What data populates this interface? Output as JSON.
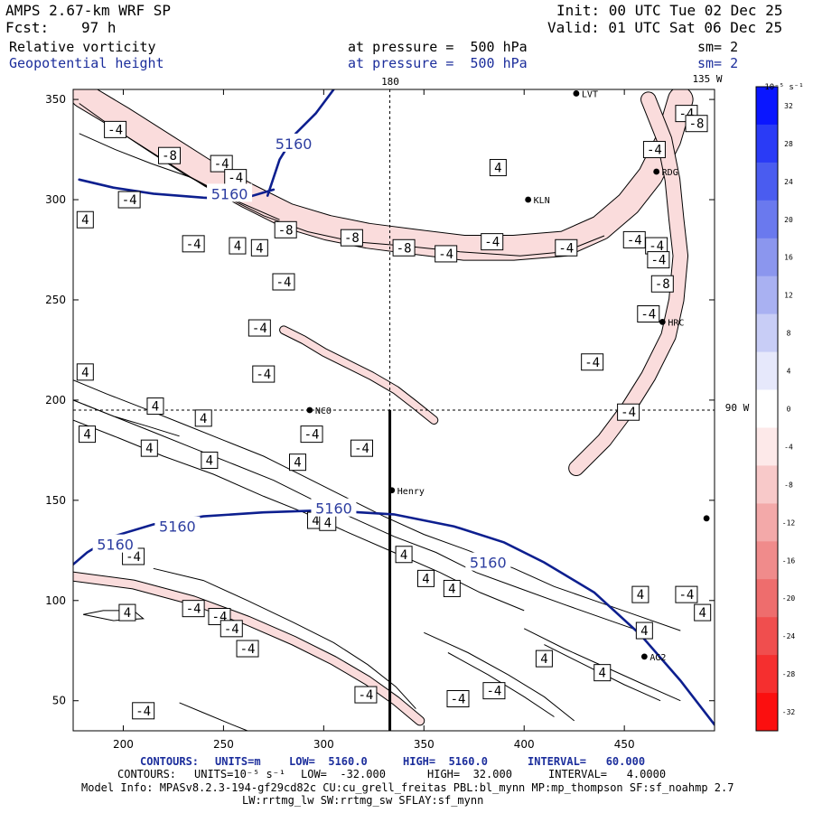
{
  "header": {
    "model": "AMPS 2.67-km WRF SP",
    "init": "Init: 00 UTC Tue 02 Dec 25",
    "fcst_label": "Fcst:",
    "fcst_value": "97 h",
    "valid": "Valid: 01 UTC Sat 06 Dec 25",
    "field1": "Relative vorticity",
    "field1_level": "at pressure =  500 hPa",
    "field1_sm": "sm= 2",
    "field2": "Geopotential height",
    "field2_level": "at pressure =  500 hPa",
    "field2_sm": "sm= 2"
  },
  "map_labels": {
    "meridian_180": "180",
    "meridian_135w": "135 W",
    "parallel_90w": "90 W"
  },
  "stations": [
    {
      "name": "LVT",
      "x": 426,
      "y": 353
    },
    {
      "name": "RDG",
      "x": 466,
      "y": 314
    },
    {
      "name": "KLN",
      "x": 402,
      "y": 300
    },
    {
      "name": "HRC",
      "x": 469,
      "y": 239
    },
    {
      "name": "NCO",
      "x": 293,
      "y": 195
    },
    {
      "name": "Henry",
      "x": 334,
      "y": 155
    },
    {
      "name": "AG2",
      "x": 460,
      "y": 72
    },
    {
      "name": "",
      "x": 491,
      "y": 141
    }
  ],
  "chart_data": {
    "type": "contour",
    "xlim": [
      175,
      495
    ],
    "ylim": [
      35,
      355
    ],
    "xticks": [
      "200",
      "250",
      "300",
      "350",
      "400",
      "450"
    ],
    "xtick_values": [
      200,
      250,
      300,
      350,
      400,
      450
    ],
    "yticks": [
      "50",
      "100",
      "150",
      "200",
      "250",
      "300",
      "350"
    ],
    "ytick_values": [
      50,
      100,
      150,
      200,
      250,
      300,
      350
    ],
    "crosshair": {
      "x": 333,
      "y": 195
    },
    "section_line": {
      "x": 333,
      "y_from": 35,
      "y_to": 195
    },
    "height_contours": [
      {
        "value": "5160",
        "points": [
          [
            178,
            310
          ],
          [
            195,
            306
          ],
          [
            215,
            303
          ],
          [
            240,
            301
          ],
          [
            258,
            300
          ],
          [
            275,
            305
          ]
        ]
      },
      {
        "value": "5160",
        "points": [
          [
            272,
            302
          ],
          [
            278,
            320
          ],
          [
            286,
            333
          ],
          [
            296,
            343
          ],
          [
            305,
            355
          ]
        ]
      },
      {
        "value": "5160",
        "points": [
          [
            175,
            118
          ],
          [
            182,
            124
          ],
          [
            195,
            132
          ],
          [
            215,
            138
          ],
          [
            240,
            142
          ],
          [
            270,
            144
          ],
          [
            300,
            145
          ],
          [
            335,
            143
          ],
          [
            365,
            137
          ],
          [
            390,
            129
          ],
          [
            410,
            119
          ],
          [
            435,
            104
          ],
          [
            458,
            83
          ],
          [
            478,
            60
          ],
          [
            495,
            38
          ]
        ]
      }
    ],
    "height_labels": [
      {
        "text": "5160",
        "x": 285,
        "y": 328
      },
      {
        "text": "5160",
        "x": 253,
        "y": 303
      },
      {
        "text": "5160",
        "x": 196,
        "y": 128
      },
      {
        "text": "5160",
        "x": 227,
        "y": 137
      },
      {
        "text": "5160",
        "x": 305,
        "y": 146
      },
      {
        "text": "5160",
        "x": 382,
        "y": 119
      }
    ],
    "vort_bands": [
      {
        "level": -8,
        "points": [
          [
            190,
            347
          ],
          [
            205,
            338
          ],
          [
            225,
            325
          ],
          [
            245,
            313
          ],
          [
            262,
            303
          ],
          [
            280,
            293
          ],
          [
            300,
            287
          ],
          [
            320,
            283
          ],
          [
            345,
            280
          ],
          [
            370,
            277
          ],
          [
            395,
            277
          ],
          [
            415,
            278
          ],
          [
            425,
            280
          ]
        ],
        "width": 5.5
      },
      {
        "level": -4,
        "points": [
          [
            180,
            352
          ],
          [
            200,
            340
          ],
          [
            222,
            326
          ],
          [
            244,
            312
          ],
          [
            262,
            302
          ],
          [
            282,
            292
          ],
          [
            302,
            286
          ],
          [
            322,
            282
          ],
          [
            345,
            279
          ],
          [
            370,
            276
          ],
          [
            395,
            276
          ],
          [
            420,
            278
          ],
          [
            438,
            286
          ],
          [
            452,
            298
          ],
          [
            463,
            312
          ],
          [
            472,
            330
          ],
          [
            478,
            350
          ]
        ],
        "width": 12
      },
      {
        "level": -4,
        "points": [
          [
            462,
            350
          ],
          [
            470,
            330
          ],
          [
            474,
            310
          ],
          [
            476,
            290
          ],
          [
            478,
            272
          ],
          [
            476,
            250
          ],
          [
            472,
            232
          ],
          [
            462,
            212
          ],
          [
            452,
            196
          ],
          [
            440,
            180
          ],
          [
            426,
            166
          ]
        ],
        "width": 7
      },
      {
        "level": -4,
        "points": [
          [
            175,
            112
          ],
          [
            205,
            108
          ],
          [
            235,
            100
          ],
          [
            262,
            90
          ],
          [
            285,
            80
          ],
          [
            305,
            70
          ],
          [
            322,
            60
          ],
          [
            336,
            50
          ],
          [
            348,
            40
          ]
        ],
        "width": 4
      },
      {
        "level": -4,
        "points": [
          [
            280,
            235
          ],
          [
            290,
            230
          ],
          [
            300,
            224
          ],
          [
            312,
            218
          ],
          [
            324,
            212
          ],
          [
            336,
            205
          ],
          [
            345,
            198
          ],
          [
            355,
            190
          ]
        ],
        "width": 3.5
      }
    ],
    "vort_lines": [
      {
        "points": [
          [
            178,
            348
          ],
          [
            192,
            338
          ],
          [
            210,
            326
          ],
          [
            230,
            313
          ],
          [
            250,
            302
          ],
          [
            270,
            292
          ],
          [
            292,
            284
          ],
          [
            315,
            279
          ],
          [
            340,
            277
          ],
          [
            368,
            274
          ],
          [
            398,
            272
          ],
          [
            420,
            274
          ],
          [
            440,
            282
          ]
        ]
      },
      {
        "points": [
          [
            178,
            333
          ],
          [
            196,
            325
          ],
          [
            214,
            318
          ],
          [
            234,
            311
          ],
          [
            255,
            300
          ],
          [
            278,
            290
          ]
        ]
      },
      {
        "points": [
          [
            175,
            210
          ],
          [
            192,
            203
          ],
          [
            210,
            196
          ],
          [
            230,
            188
          ],
          [
            250,
            180
          ],
          [
            270,
            172
          ],
          [
            290,
            162
          ],
          [
            310,
            152
          ],
          [
            330,
            142
          ],
          [
            350,
            133
          ],
          [
            372,
            125
          ],
          [
            395,
            116
          ],
          [
            415,
            107
          ],
          [
            435,
            100
          ],
          [
            455,
            93
          ],
          [
            478,
            85
          ]
        ]
      },
      {
        "points": [
          [
            175,
            200
          ],
          [
            195,
            192
          ],
          [
            215,
            184
          ],
          [
            235,
            176
          ],
          [
            255,
            168
          ],
          [
            275,
            160
          ],
          [
            295,
            150
          ],
          [
            315,
            141
          ],
          [
            335,
            132
          ],
          [
            356,
            124
          ],
          [
            376,
            114
          ],
          [
            398,
            106
          ],
          [
            420,
            98
          ],
          [
            440,
            91
          ],
          [
            460,
            84
          ]
        ]
      },
      {
        "points": [
          [
            175,
            190
          ],
          [
            198,
            181
          ],
          [
            220,
            172
          ],
          [
            245,
            163
          ],
          [
            270,
            152
          ],
          [
            290,
            144
          ],
          [
            312,
            134
          ],
          [
            335,
            124
          ],
          [
            358,
            114
          ],
          [
            378,
            104
          ],
          [
            400,
            95
          ]
        ]
      },
      {
        "points": [
          [
            215,
            116
          ],
          [
            240,
            110
          ],
          [
            262,
            100
          ],
          [
            285,
            89
          ],
          [
            305,
            79
          ],
          [
            322,
            68
          ],
          [
            336,
            57
          ],
          [
            346,
            46
          ]
        ]
      },
      {
        "points": [
          [
            180,
            93
          ],
          [
            195,
            90
          ],
          [
            210,
            91
          ],
          [
            205,
            95
          ],
          [
            190,
            95
          ],
          [
            180,
            93
          ]
        ]
      },
      {
        "points": [
          [
            228,
            49
          ],
          [
            240,
            44
          ],
          [
            252,
            39
          ],
          [
            262,
            35
          ]
        ]
      },
      {
        "points": [
          [
            350,
            84
          ],
          [
            372,
            74
          ],
          [
            392,
            63
          ],
          [
            410,
            52
          ],
          [
            425,
            40
          ]
        ]
      },
      {
        "points": [
          [
            362,
            74
          ],
          [
            382,
            63
          ],
          [
            400,
            52
          ],
          [
            415,
            42
          ]
        ]
      },
      {
        "points": [
          [
            400,
            86
          ],
          [
            420,
            76
          ],
          [
            440,
            67
          ],
          [
            460,
            58
          ],
          [
            478,
            50
          ]
        ]
      },
      {
        "points": [
          [
            410,
            78
          ],
          [
            430,
            68
          ],
          [
            450,
            58
          ],
          [
            468,
            50
          ]
        ]
      },
      {
        "points": [
          [
            180,
            198
          ],
          [
            195,
            192
          ],
          [
            212,
            187
          ],
          [
            228,
            182
          ]
        ]
      }
    ],
    "vort_labels": [
      {
        "text": "-4",
        "x": 196,
        "y": 335
      },
      {
        "text": "-8",
        "x": 223,
        "y": 322
      },
      {
        "text": "-4",
        "x": 249,
        "y": 318
      },
      {
        "text": "-4",
        "x": 256,
        "y": 311
      },
      {
        "text": "-4",
        "x": 203,
        "y": 300
      },
      {
        "text": "4",
        "x": 181,
        "y": 290
      },
      {
        "text": "-4",
        "x": 235,
        "y": 278
      },
      {
        "text": "4",
        "x": 257,
        "y": 277
      },
      {
        "text": "4",
        "x": 268,
        "y": 276
      },
      {
        "text": "-8",
        "x": 281,
        "y": 285
      },
      {
        "text": "-8",
        "x": 314,
        "y": 281
      },
      {
        "text": "-8",
        "x": 340,
        "y": 276
      },
      {
        "text": "-4",
        "x": 361,
        "y": 273
      },
      {
        "text": "-4",
        "x": 280,
        "y": 259
      },
      {
        "text": "-4",
        "x": 268,
        "y": 236
      },
      {
        "text": "-4",
        "x": 270,
        "y": 213
      },
      {
        "text": "4",
        "x": 181,
        "y": 214
      },
      {
        "text": "4",
        "x": 216,
        "y": 197
      },
      {
        "text": "4",
        "x": 240,
        "y": 191
      },
      {
        "text": "4",
        "x": 182,
        "y": 183
      },
      {
        "text": "4",
        "x": 213,
        "y": 176
      },
      {
        "text": "4",
        "x": 243,
        "y": 170
      },
      {
        "text": "-4",
        "x": 294,
        "y": 183
      },
      {
        "text": "-4",
        "x": 319,
        "y": 176
      },
      {
        "text": "4",
        "x": 287,
        "y": 169
      },
      {
        "text": "4",
        "x": 296,
        "y": 140
      },
      {
        "text": "4",
        "x": 302,
        "y": 139
      },
      {
        "text": "4",
        "x": 340,
        "y": 123
      },
      {
        "text": "4",
        "x": 351,
        "y": 111
      },
      {
        "text": "4",
        "x": 364,
        "y": 106
      },
      {
        "text": "-4",
        "x": 205,
        "y": 122
      },
      {
        "text": "4",
        "x": 202,
        "y": 94
      },
      {
        "text": "-4",
        "x": 235,
        "y": 96
      },
      {
        "text": "-4",
        "x": 248,
        "y": 92
      },
      {
        "text": "-4",
        "x": 254,
        "y": 86
      },
      {
        "text": "-4",
        "x": 262,
        "y": 76
      },
      {
        "text": "-4",
        "x": 321,
        "y": 53
      },
      {
        "text": "-4",
        "x": 367,
        "y": 51
      },
      {
        "text": "-4",
        "x": 385,
        "y": 55
      },
      {
        "text": "-4",
        "x": 210,
        "y": 45
      },
      {
        "text": "4",
        "x": 410,
        "y": 71
      },
      {
        "text": "4",
        "x": 439,
        "y": 64
      },
      {
        "text": "4",
        "x": 458,
        "y": 103
      },
      {
        "text": "-4",
        "x": 481,
        "y": 103
      },
      {
        "text": "4",
        "x": 489,
        "y": 94
      },
      {
        "text": "-4",
        "x": 384,
        "y": 279
      },
      {
        "text": "4",
        "x": 387,
        "y": 316
      },
      {
        "text": "-4",
        "x": 421,
        "y": 276
      },
      {
        "text": "-4",
        "x": 455,
        "y": 280
      },
      {
        "text": "-4",
        "x": 466,
        "y": 277
      },
      {
        "text": "-4",
        "x": 481,
        "y": 343
      },
      {
        "text": "-8",
        "x": 486,
        "y": 338
      },
      {
        "text": "-4",
        "x": 465,
        "y": 325
      },
      {
        "text": "-4",
        "x": 467,
        "y": 270
      },
      {
        "text": "-8",
        "x": 469,
        "y": 258
      },
      {
        "text": "-4",
        "x": 462,
        "y": 243
      },
      {
        "text": "-4",
        "x": 434,
        "y": 219
      },
      {
        "text": "-4",
        "x": 452,
        "y": 194
      },
      {
        "text": "4",
        "x": 460,
        "y": 85
      }
    ],
    "colorbar": {
      "unit_label": "10⁻⁵ s⁻¹",
      "ticks": [
        "32",
        "28",
        "24",
        "20",
        "16",
        "12",
        "8",
        "4",
        "0",
        "-4",
        "-8",
        "-12",
        "-16",
        "-20",
        "-24",
        "-28",
        "-32"
      ],
      "colors": [
        "#0a16ff",
        "#2a3bf6",
        "#4a5cf0",
        "#6a79ee",
        "#8b96ee",
        "#a9b1f2",
        "#c8cdf6",
        "#e6e8fb",
        "#ffffff",
        "#fde9e9",
        "#f8c9c9",
        "#f3a9a9",
        "#f08b8b",
        "#ee6d6d",
        "#f04e4e",
        "#f52f2f",
        "#fb0f0f"
      ]
    }
  },
  "footer": {
    "line1_contours": "CONTOURS:",
    "line1_units": "UNITS=m",
    "line1_low": "LOW=  5160.0",
    "line1_high": "HIGH=  5160.0",
    "line1_interval": "INTERVAL=   60.000",
    "line2_contours": "CONTOURS:",
    "line2_units": "UNITS=10⁻⁵ s⁻¹",
    "line2_low": "LOW=  -32.000",
    "line2_high": "HIGH=  32.000",
    "line2_interval": "INTERVAL=   4.0000",
    "model_info": "Model Info: MPASv8.2.3-194-gf29cd82c CU:cu_grell_freitas PBL:bl_mynn MP:mp_thompson SF:sf_noahmp 2.7",
    "model_info2": "LW:rrtmg_lw SW:rrtmg_sw SFLAY:sf_mynn"
  }
}
